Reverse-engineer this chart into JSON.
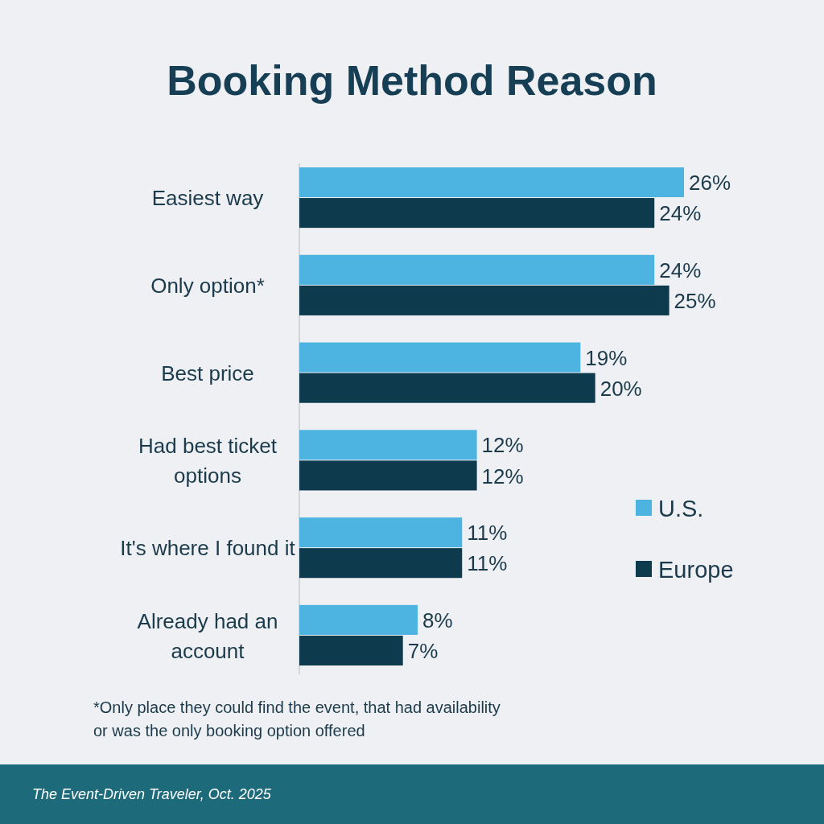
{
  "chart_data": {
    "type": "bar",
    "orientation": "horizontal",
    "title": "Booking Method Reason",
    "categories": [
      "Easiest way",
      "Only option*",
      "Best price",
      "Had best ticket options",
      "It's where I found it",
      "Already had an account"
    ],
    "series": [
      {
        "name": "U.S.",
        "color": "#4db3e0",
        "values": [
          26,
          24,
          19,
          12,
          11,
          8
        ],
        "value_labels": [
          "26%",
          "24%",
          "19%",
          "12%",
          "11%",
          "8%"
        ]
      },
      {
        "name": "Europe",
        "color": "#0e3a4e",
        "values": [
          24,
          25,
          20,
          12,
          11,
          7
        ],
        "value_labels": [
          "24%",
          "25%",
          "20%",
          "12%",
          "11%",
          "7%"
        ]
      }
    ],
    "legend": "right",
    "annotations": [
      "*Only place they could find the event, that had availability or was the only booking option offered",
      "The Event-Driven Traveler, Oct. 2025"
    ]
  }
}
